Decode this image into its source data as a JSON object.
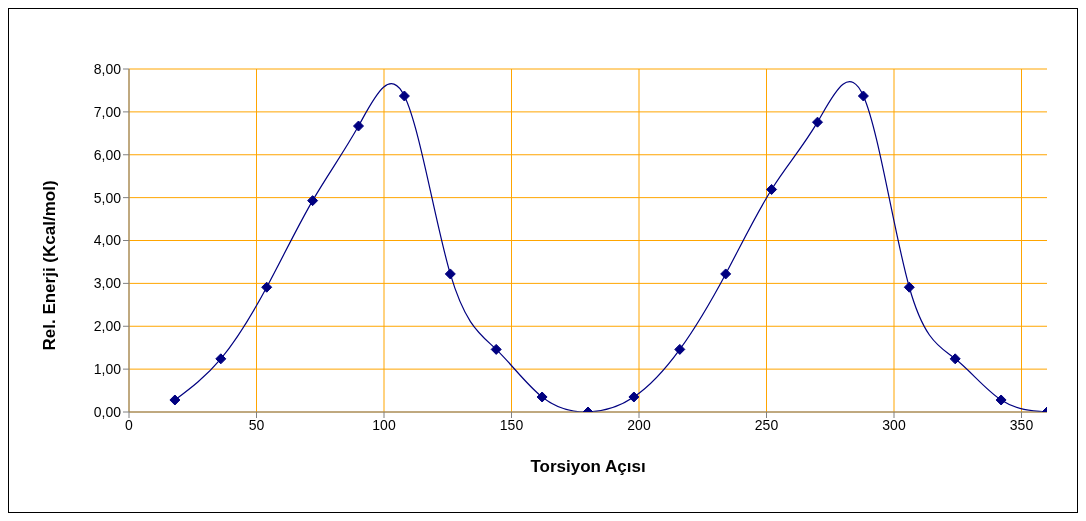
{
  "chart_data": {
    "type": "line",
    "xlabel": "Torsiyon Açısı",
    "ylabel": "Rel. Enerji (Kcal/mol)",
    "x": [
      18,
      36,
      54,
      72,
      90,
      108,
      126,
      144,
      162,
      180,
      198,
      216,
      234,
      252,
      270,
      288,
      306,
      324,
      342,
      360
    ],
    "series": [
      {
        "color": "#000080",
        "values": [
          0.28,
          1.24,
          2.91,
          4.93,
          6.67,
          7.37,
          3.22,
          1.46,
          0.35,
          0,
          0.35,
          1.46,
          3.22,
          5.19,
          6.76,
          7.37,
          2.91,
          1.24,
          0.28,
          0
        ]
      }
    ],
    "xlim": [
      0,
      360
    ],
    "xticks": [
      0,
      50,
      100,
      150,
      200,
      250,
      300,
      350
    ],
    "ylim": [
      0,
      8
    ],
    "yticks": [
      {
        "value": 0,
        "label": "0,00"
      },
      {
        "value": 1,
        "label": "1,00"
      },
      {
        "value": 2,
        "label": "2,00"
      },
      {
        "value": 3,
        "label": "3,00"
      },
      {
        "value": 4,
        "label": "4,00"
      },
      {
        "value": 5,
        "label": "5,00"
      },
      {
        "value": 6,
        "label": "6,00"
      },
      {
        "value": 7,
        "label": "7,00"
      },
      {
        "value": 8,
        "label": "8,00"
      }
    ],
    "grid": true,
    "legend": false,
    "marker": "diamond",
    "line_style": "solid"
  }
}
